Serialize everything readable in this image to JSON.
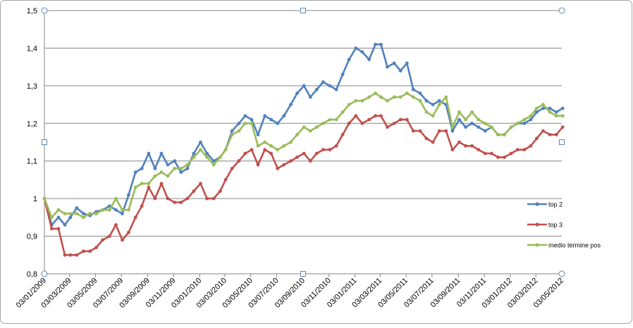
{
  "chart_data": {
    "type": "line",
    "title": "",
    "xlabel": "",
    "ylabel": "",
    "ylim": [
      0.8,
      1.5
    ],
    "yticks": [
      "1,5",
      "1,4",
      "1,3",
      "1,2",
      "1,1",
      "1",
      "0,9",
      "0,8"
    ],
    "ytick_values": [
      1.5,
      1.4,
      1.3,
      1.2,
      1.1,
      1.0,
      0.9,
      0.8
    ],
    "x_labels": [
      "03/01/2009",
      "03/03/2009",
      "03/05/2009",
      "03/07/2009",
      "03/09/2009",
      "03/11/2009",
      "03/01/2010",
      "03/03/2010",
      "03/05/2010",
      "03/07/2010",
      "03/09/2010",
      "03/11/2010",
      "03/01/2011",
      "03/03/2011",
      "03/05/2011",
      "03/07/2011",
      "03/09/2011",
      "03/11/2011",
      "03/01/2012",
      "03/03/2012",
      "03/05/2012"
    ],
    "grid": true,
    "legend_position": "right",
    "series": [
      {
        "name": "top 2",
        "color": "#4f81bd",
        "points": [
          [
            "2009-01-03",
            1.0
          ],
          [
            "2009-01-20",
            0.93
          ],
          [
            "2009-02-05",
            0.95
          ],
          [
            "2009-02-20",
            0.93
          ],
          [
            "2009-03-05",
            0.95
          ],
          [
            "2009-03-20",
            0.975
          ],
          [
            "2009-04-05",
            0.96
          ],
          [
            "2009-04-20",
            0.955
          ],
          [
            "2009-05-05",
            0.965
          ],
          [
            "2009-05-20",
            0.97
          ],
          [
            "2009-06-05",
            0.98
          ],
          [
            "2009-06-20",
            0.97
          ],
          [
            "2009-07-05",
            0.96
          ],
          [
            "2009-07-20",
            1.01
          ],
          [
            "2009-08-05",
            1.07
          ],
          [
            "2009-08-20",
            1.08
          ],
          [
            "2009-09-05",
            1.12
          ],
          [
            "2009-09-20",
            1.08
          ],
          [
            "2009-10-05",
            1.12
          ],
          [
            "2009-10-20",
            1.09
          ],
          [
            "2009-11-05",
            1.1
          ],
          [
            "2009-11-20",
            1.07
          ],
          [
            "2009-12-05",
            1.08
          ],
          [
            "2009-12-20",
            1.12
          ],
          [
            "2010-01-05",
            1.15
          ],
          [
            "2010-01-20",
            1.12
          ],
          [
            "2010-02-05",
            1.1
          ],
          [
            "2010-02-20",
            1.11
          ],
          [
            "2010-03-05",
            1.13
          ],
          [
            "2010-03-20",
            1.18
          ],
          [
            "2010-04-05",
            1.2
          ],
          [
            "2010-04-20",
            1.22
          ],
          [
            "2010-05-05",
            1.21
          ],
          [
            "2010-05-20",
            1.17
          ],
          [
            "2010-06-05",
            1.22
          ],
          [
            "2010-06-20",
            1.21
          ],
          [
            "2010-07-05",
            1.2
          ],
          [
            "2010-07-20",
            1.22
          ],
          [
            "2010-08-05",
            1.25
          ],
          [
            "2010-08-20",
            1.28
          ],
          [
            "2010-09-05",
            1.3
          ],
          [
            "2010-09-20",
            1.27
          ],
          [
            "2010-10-05",
            1.29
          ],
          [
            "2010-10-20",
            1.31
          ],
          [
            "2010-11-05",
            1.3
          ],
          [
            "2010-11-20",
            1.29
          ],
          [
            "2010-12-05",
            1.33
          ],
          [
            "2010-12-20",
            1.37
          ],
          [
            "2011-01-05",
            1.4
          ],
          [
            "2011-01-20",
            1.39
          ],
          [
            "2011-02-05",
            1.37
          ],
          [
            "2011-02-20",
            1.41
          ],
          [
            "2011-03-05",
            1.41
          ],
          [
            "2011-03-20",
            1.35
          ],
          [
            "2011-04-05",
            1.36
          ],
          [
            "2011-04-20",
            1.34
          ],
          [
            "2011-05-05",
            1.36
          ],
          [
            "2011-05-20",
            1.29
          ],
          [
            "2011-06-05",
            1.28
          ],
          [
            "2011-06-20",
            1.26
          ],
          [
            "2011-07-05",
            1.25
          ],
          [
            "2011-07-20",
            1.26
          ],
          [
            "2011-08-05",
            1.25
          ],
          [
            "2011-08-20",
            1.18
          ],
          [
            "2011-09-05",
            1.21
          ],
          [
            "2011-09-20",
            1.19
          ],
          [
            "2011-10-05",
            1.2
          ],
          [
            "2011-10-20",
            1.19
          ],
          [
            "2011-11-05",
            1.18
          ],
          [
            "2011-11-20",
            1.19
          ],
          [
            "2011-12-05",
            1.17
          ],
          [
            "2011-12-20",
            1.17
          ],
          [
            "2012-01-05",
            1.19
          ],
          [
            "2012-01-20",
            1.2
          ],
          [
            "2012-02-05",
            1.2
          ],
          [
            "2012-02-20",
            1.21
          ],
          [
            "2012-03-05",
            1.23
          ],
          [
            "2012-03-20",
            1.24
          ],
          [
            "2012-04-05",
            1.24
          ],
          [
            "2012-04-20",
            1.23
          ],
          [
            "2012-05-05",
            1.24
          ]
        ]
      },
      {
        "name": "top 3",
        "color": "#c0504d",
        "points": [
          [
            "2009-01-03",
            1.0
          ],
          [
            "2009-01-20",
            0.92
          ],
          [
            "2009-02-05",
            0.92
          ],
          [
            "2009-02-20",
            0.85
          ],
          [
            "2009-03-05",
            0.85
          ],
          [
            "2009-03-20",
            0.85
          ],
          [
            "2009-04-05",
            0.86
          ],
          [
            "2009-04-20",
            0.86
          ],
          [
            "2009-05-05",
            0.87
          ],
          [
            "2009-05-20",
            0.89
          ],
          [
            "2009-06-05",
            0.9
          ],
          [
            "2009-06-20",
            0.93
          ],
          [
            "2009-07-05",
            0.89
          ],
          [
            "2009-07-20",
            0.91
          ],
          [
            "2009-08-05",
            0.95
          ],
          [
            "2009-08-20",
            0.98
          ],
          [
            "2009-09-05",
            1.03
          ],
          [
            "2009-09-20",
            1.0
          ],
          [
            "2009-10-05",
            1.04
          ],
          [
            "2009-10-20",
            1.0
          ],
          [
            "2009-11-05",
            0.99
          ],
          [
            "2009-11-20",
            0.99
          ],
          [
            "2009-12-05",
            1.0
          ],
          [
            "2009-12-20",
            1.02
          ],
          [
            "2010-01-05",
            1.04
          ],
          [
            "2010-01-20",
            1.0
          ],
          [
            "2010-02-05",
            1.0
          ],
          [
            "2010-02-20",
            1.02
          ],
          [
            "2010-03-05",
            1.05
          ],
          [
            "2010-03-20",
            1.08
          ],
          [
            "2010-04-05",
            1.1
          ],
          [
            "2010-04-20",
            1.12
          ],
          [
            "2010-05-05",
            1.13
          ],
          [
            "2010-05-20",
            1.09
          ],
          [
            "2010-06-05",
            1.13
          ],
          [
            "2010-06-20",
            1.12
          ],
          [
            "2010-07-05",
            1.08
          ],
          [
            "2010-07-20",
            1.09
          ],
          [
            "2010-08-05",
            1.1
          ],
          [
            "2010-08-20",
            1.11
          ],
          [
            "2010-09-05",
            1.12
          ],
          [
            "2010-09-20",
            1.1
          ],
          [
            "2010-10-05",
            1.12
          ],
          [
            "2010-10-20",
            1.13
          ],
          [
            "2010-11-05",
            1.13
          ],
          [
            "2010-11-20",
            1.14
          ],
          [
            "2010-12-05",
            1.17
          ],
          [
            "2010-12-20",
            1.2
          ],
          [
            "2011-01-05",
            1.22
          ],
          [
            "2011-01-20",
            1.2
          ],
          [
            "2011-02-05",
            1.21
          ],
          [
            "2011-02-20",
            1.22
          ],
          [
            "2011-03-05",
            1.22
          ],
          [
            "2011-03-20",
            1.19
          ],
          [
            "2011-04-05",
            1.2
          ],
          [
            "2011-04-20",
            1.21
          ],
          [
            "2011-05-05",
            1.21
          ],
          [
            "2011-05-20",
            1.18
          ],
          [
            "2011-06-05",
            1.18
          ],
          [
            "2011-06-20",
            1.16
          ],
          [
            "2011-07-05",
            1.15
          ],
          [
            "2011-07-20",
            1.18
          ],
          [
            "2011-08-05",
            1.18
          ],
          [
            "2011-08-20",
            1.13
          ],
          [
            "2011-09-05",
            1.15
          ],
          [
            "2011-09-20",
            1.14
          ],
          [
            "2011-10-05",
            1.14
          ],
          [
            "2011-10-20",
            1.13
          ],
          [
            "2011-11-05",
            1.12
          ],
          [
            "2011-11-20",
            1.12
          ],
          [
            "2011-12-05",
            1.11
          ],
          [
            "2011-12-20",
            1.11
          ],
          [
            "2012-01-05",
            1.12
          ],
          [
            "2012-01-20",
            1.13
          ],
          [
            "2012-02-05",
            1.13
          ],
          [
            "2012-02-20",
            1.14
          ],
          [
            "2012-03-05",
            1.16
          ],
          [
            "2012-03-20",
            1.18
          ],
          [
            "2012-04-05",
            1.17
          ],
          [
            "2012-04-20",
            1.17
          ],
          [
            "2012-05-05",
            1.19
          ]
        ]
      },
      {
        "name": "medio termine pos",
        "color": "#9bbb59",
        "points": [
          [
            "2009-01-03",
            1.0
          ],
          [
            "2009-01-20",
            0.95
          ],
          [
            "2009-02-05",
            0.97
          ],
          [
            "2009-02-20",
            0.96
          ],
          [
            "2009-03-05",
            0.96
          ],
          [
            "2009-03-20",
            0.96
          ],
          [
            "2009-04-05",
            0.95
          ],
          [
            "2009-04-20",
            0.96
          ],
          [
            "2009-05-05",
            0.96
          ],
          [
            "2009-05-20",
            0.97
          ],
          [
            "2009-06-05",
            0.97
          ],
          [
            "2009-06-20",
            1.0
          ],
          [
            "2009-07-05",
            0.97
          ],
          [
            "2009-07-20",
            0.97
          ],
          [
            "2009-08-05",
            1.03
          ],
          [
            "2009-08-20",
            1.04
          ],
          [
            "2009-09-05",
            1.04
          ],
          [
            "2009-09-20",
            1.06
          ],
          [
            "2009-10-05",
            1.07
          ],
          [
            "2009-10-20",
            1.06
          ],
          [
            "2009-11-05",
            1.08
          ],
          [
            "2009-11-20",
            1.08
          ],
          [
            "2009-12-05",
            1.09
          ],
          [
            "2009-12-20",
            1.11
          ],
          [
            "2010-01-05",
            1.13
          ],
          [
            "2010-01-20",
            1.11
          ],
          [
            "2010-02-05",
            1.09
          ],
          [
            "2010-02-20",
            1.11
          ],
          [
            "2010-03-05",
            1.13
          ],
          [
            "2010-03-20",
            1.17
          ],
          [
            "2010-04-05",
            1.18
          ],
          [
            "2010-04-20",
            1.2
          ],
          [
            "2010-05-05",
            1.2
          ],
          [
            "2010-05-20",
            1.14
          ],
          [
            "2010-06-05",
            1.15
          ],
          [
            "2010-06-20",
            1.14
          ],
          [
            "2010-07-05",
            1.13
          ],
          [
            "2010-07-20",
            1.14
          ],
          [
            "2010-08-05",
            1.15
          ],
          [
            "2010-08-20",
            1.17
          ],
          [
            "2010-09-05",
            1.19
          ],
          [
            "2010-09-20",
            1.18
          ],
          [
            "2010-10-05",
            1.19
          ],
          [
            "2010-10-20",
            1.2
          ],
          [
            "2010-11-05",
            1.21
          ],
          [
            "2010-11-20",
            1.21
          ],
          [
            "2010-12-05",
            1.23
          ],
          [
            "2010-12-20",
            1.25
          ],
          [
            "2011-01-05",
            1.26
          ],
          [
            "2011-01-20",
            1.26
          ],
          [
            "2011-02-05",
            1.27
          ],
          [
            "2011-02-20",
            1.28
          ],
          [
            "2011-03-05",
            1.27
          ],
          [
            "2011-03-20",
            1.26
          ],
          [
            "2011-04-05",
            1.27
          ],
          [
            "2011-04-20",
            1.27
          ],
          [
            "2011-05-05",
            1.28
          ],
          [
            "2011-05-20",
            1.27
          ],
          [
            "2011-06-05",
            1.26
          ],
          [
            "2011-06-20",
            1.23
          ],
          [
            "2011-07-05",
            1.22
          ],
          [
            "2011-07-20",
            1.25
          ],
          [
            "2011-08-05",
            1.27
          ],
          [
            "2011-08-20",
            1.19
          ],
          [
            "2011-09-05",
            1.23
          ],
          [
            "2011-09-20",
            1.21
          ],
          [
            "2011-10-05",
            1.23
          ],
          [
            "2011-10-20",
            1.21
          ],
          [
            "2011-11-05",
            1.2
          ],
          [
            "2011-11-20",
            1.19
          ],
          [
            "2011-12-05",
            1.17
          ],
          [
            "2011-12-20",
            1.17
          ],
          [
            "2012-01-05",
            1.19
          ],
          [
            "2012-01-20",
            1.2
          ],
          [
            "2012-02-05",
            1.21
          ],
          [
            "2012-02-20",
            1.22
          ],
          [
            "2012-03-05",
            1.24
          ],
          [
            "2012-03-20",
            1.25
          ],
          [
            "2012-04-05",
            1.23
          ],
          [
            "2012-04-20",
            1.22
          ],
          [
            "2012-05-05",
            1.22
          ]
        ]
      }
    ]
  }
}
